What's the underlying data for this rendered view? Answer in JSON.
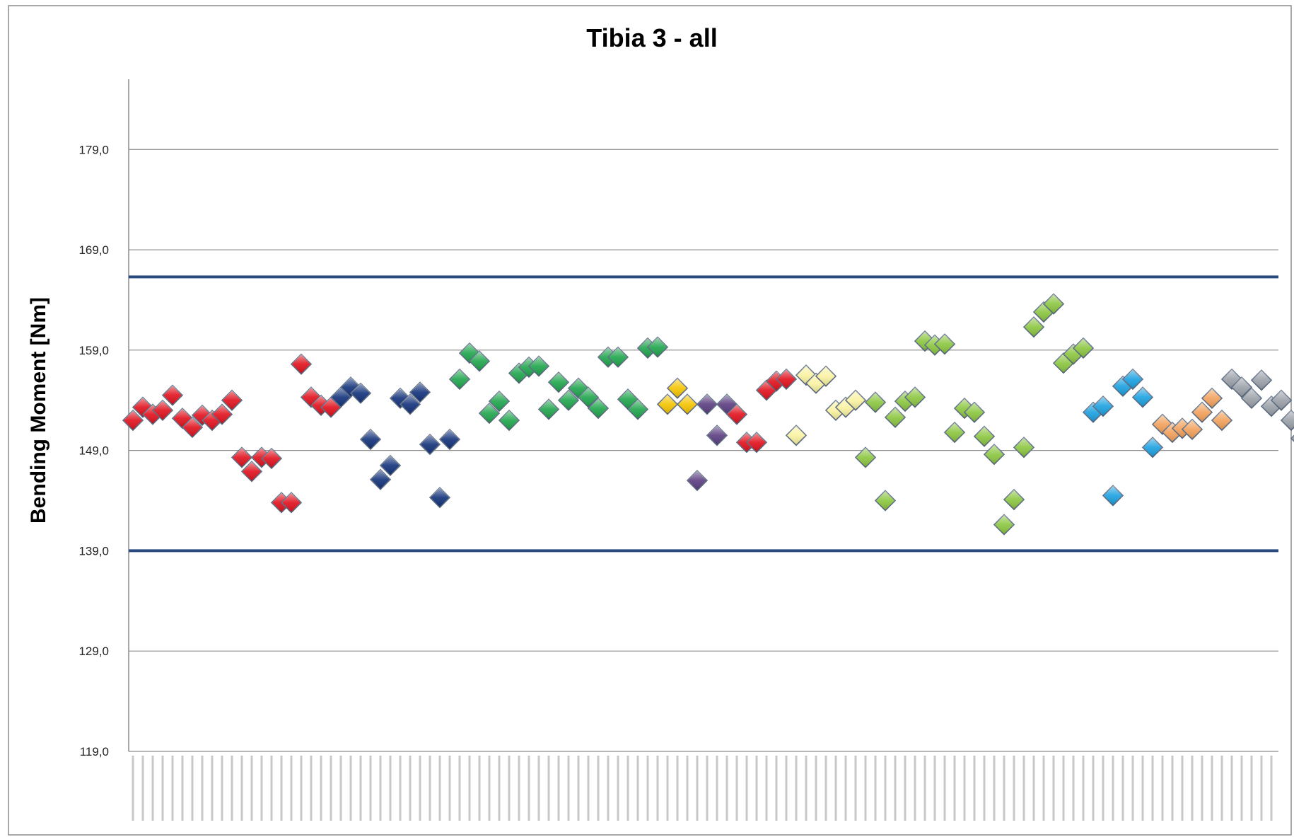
{
  "chart_data": {
    "type": "scatter",
    "title": "Tibia 3 - all",
    "xlabel": "",
    "ylabel": "Bending Moment  [Nm]",
    "ylim": [
      119.0,
      186.0
    ],
    "y_ticks": [
      "179,0",
      "169,0",
      "159,0",
      "149,0",
      "139,0",
      "129,0",
      "119,0"
    ],
    "y_tick_values": [
      179,
      169,
      159,
      149,
      139,
      129,
      119
    ],
    "grid": true,
    "legend": "none",
    "limit_lines": [
      166.3,
      139.0
    ],
    "limit_line_color": "#2a4a7f",
    "marker": "diamond",
    "x_count": 130,
    "series": [
      {
        "color": "#e0101c",
        "points": [
          [
            1,
            152.0
          ],
          [
            2,
            153.3
          ],
          [
            3,
            152.6
          ],
          [
            4,
            153.0
          ],
          [
            5,
            154.5
          ],
          [
            6,
            152.2
          ],
          [
            7,
            151.3
          ],
          [
            8,
            152.5
          ],
          [
            9,
            152.0
          ],
          [
            10,
            152.6
          ],
          [
            11,
            154.0
          ],
          [
            12,
            148.3
          ],
          [
            13,
            146.9
          ],
          [
            14,
            148.3
          ],
          [
            15,
            148.2
          ],
          [
            16,
            143.8
          ],
          [
            17,
            143.8
          ],
          [
            18,
            157.6
          ],
          [
            19,
            154.3
          ],
          [
            20,
            153.5
          ],
          [
            21,
            153.3
          ]
        ]
      },
      {
        "color": "#11317a",
        "points": [
          [
            22,
            154.3
          ],
          [
            23,
            155.3
          ],
          [
            24,
            154.7
          ],
          [
            25,
            150.1
          ],
          [
            26,
            146.1
          ],
          [
            27,
            147.5
          ],
          [
            28,
            154.2
          ],
          [
            29,
            153.6
          ],
          [
            30,
            154.8
          ],
          [
            31,
            149.6
          ],
          [
            32,
            144.3
          ],
          [
            33,
            150.1
          ]
        ]
      },
      {
        "color": "#1fa54c",
        "points": [
          [
            34,
            156.1
          ],
          [
            35,
            158.7
          ],
          [
            36,
            157.9
          ],
          [
            37,
            152.7
          ],
          [
            38,
            153.9
          ],
          [
            39,
            152.0
          ],
          [
            40,
            156.7
          ],
          [
            41,
            157.3
          ],
          [
            42,
            157.4
          ],
          [
            43,
            153.1
          ],
          [
            44,
            155.8
          ],
          [
            45,
            154.0
          ],
          [
            46,
            155.2
          ],
          [
            47,
            154.3
          ],
          [
            48,
            153.2
          ],
          [
            49,
            158.3
          ],
          [
            50,
            158.3
          ],
          [
            51,
            154.1
          ],
          [
            52,
            153.1
          ],
          [
            53,
            159.2
          ],
          [
            54,
            159.3
          ]
        ]
      },
      {
        "color": "#f5c400",
        "points": [
          [
            55,
            153.6
          ],
          [
            56,
            155.2
          ],
          [
            57,
            153.6
          ]
        ]
      },
      {
        "color": "#5b3d80",
        "points": [
          [
            58,
            146.0
          ],
          [
            59,
            153.6
          ],
          [
            60,
            150.5
          ],
          [
            61,
            153.6
          ]
        ]
      },
      {
        "color": "#e0101c",
        "points": [
          [
            62,
            152.6
          ],
          [
            63,
            149.8
          ],
          [
            64,
            149.8
          ],
          [
            65,
            155.0
          ],
          [
            66,
            155.9
          ],
          [
            67,
            156.1
          ]
        ]
      },
      {
        "color": "#faf2a0",
        "points": [
          [
            68,
            150.5
          ],
          [
            69,
            156.5
          ],
          [
            70,
            155.7
          ],
          [
            71,
            156.4
          ],
          [
            72,
            153.0
          ],
          [
            73,
            153.3
          ],
          [
            74,
            154.0
          ]
        ]
      },
      {
        "color": "#8bc63f",
        "points": [
          [
            75,
            148.3
          ],
          [
            76,
            153.8
          ],
          [
            77,
            144.0
          ],
          [
            78,
            152.3
          ],
          [
            79,
            153.9
          ],
          [
            80,
            154.3
          ],
          [
            81,
            159.9
          ],
          [
            82,
            159.5
          ],
          [
            83,
            159.6
          ],
          [
            84,
            150.8
          ],
          [
            85,
            153.2
          ],
          [
            86,
            152.8
          ],
          [
            87,
            150.4
          ],
          [
            88,
            148.6
          ],
          [
            89,
            141.6
          ],
          [
            90,
            144.1
          ],
          [
            91,
            149.3
          ],
          [
            92,
            161.3
          ],
          [
            93,
            162.8
          ],
          [
            94,
            163.6
          ],
          [
            95,
            157.7
          ],
          [
            96,
            158.6
          ],
          [
            97,
            159.2
          ]
        ]
      },
      {
        "color": "#1aa0e0",
        "points": [
          [
            98,
            152.8
          ],
          [
            99,
            153.4
          ],
          [
            100,
            144.5
          ],
          [
            101,
            155.4
          ],
          [
            102,
            156.1
          ],
          [
            103,
            154.3
          ],
          [
            104,
            149.3
          ]
        ]
      },
      {
        "color": "#f2a05a",
        "points": [
          [
            105,
            151.6
          ],
          [
            106,
            150.8
          ],
          [
            107,
            151.2
          ],
          [
            108,
            151.1
          ],
          [
            109,
            152.8
          ],
          [
            110,
            154.2
          ],
          [
            111,
            152.0
          ]
        ]
      },
      {
        "color": "#9aa0a8",
        "points": [
          [
            112,
            156.1
          ],
          [
            113,
            155.3
          ],
          [
            114,
            154.2
          ],
          [
            115,
            156.0
          ],
          [
            116,
            153.4
          ],
          [
            117,
            154.0
          ],
          [
            118,
            152.0
          ],
          [
            119,
            150.2
          ]
        ]
      }
    ]
  }
}
